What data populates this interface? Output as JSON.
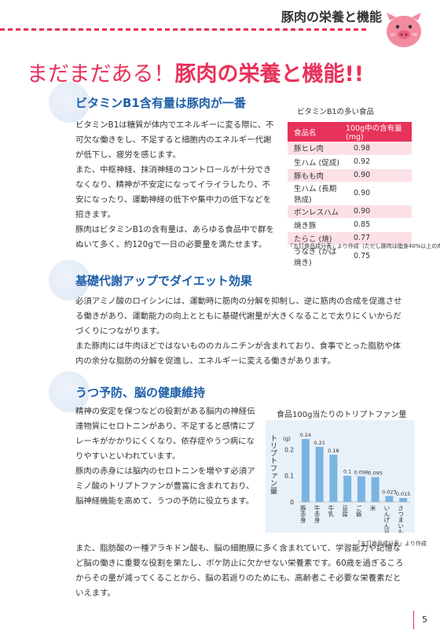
{
  "header": {
    "title": "豚肉の栄養と機能"
  },
  "main_title": {
    "lead": "まだまだある！",
    "rest": "豚肉の栄養と機能!!"
  },
  "section1": {
    "heading": "ビタミンB1含有量は豚肉が一番",
    "paragraphs": [
      "ビタミンB1は糖質が体内でエネルギーに変る際に、不可欠な働きをし、不足すると細胞内のエネルギー代謝が低下し、疲労を感じます。",
      "また、中枢神経、抹消神経のコントロールが十分できなくなり、精神が不安定になってイライラしたり、不安になったり、運動神経の低下や集中力の低下などを招きます。",
      "豚肉はビタミンB1の含有量は、あらゆる食品中で群をぬいて多く、約120gで一日の必要量を満たせます。"
    ]
  },
  "vitamin_table": {
    "caption": "ビタミンB1の多い食品",
    "headers": [
      "食品名",
      "100g中の含有量 (mg)"
    ],
    "rows": [
      [
        "豚ヒレ肉",
        "0.98"
      ],
      [
        "生ハム (促成)",
        "0.92"
      ],
      [
        "豚もも肉",
        "0.90"
      ],
      [
        "生ハム (長期熟成)",
        "0.90"
      ],
      [
        "ボンレスハム",
        "0.90"
      ],
      [
        "焼き豚",
        "0.85"
      ],
      [
        "たらこ (焼)",
        "0.77"
      ],
      [
        "うなぎ (かば焼き)",
        "0.75"
      ]
    ],
    "note": "「五訂食品成分表」より作成（ただし豚肉は脂身40%以上の肉類）"
  },
  "section2": {
    "heading": "基礎代謝アップでダイエット効果",
    "paragraphs": [
      "必須アミノ酸のロイシンには、運動時に筋肉の分解を抑制し、逆に筋肉の合成を促進させる働きがあり、運動能力の向上とともに基礎代謝量が大きくなることで太りにくいからだづくりにつながります。",
      "また豚肉には牛肉ほどではないもののカルニチンが含まれており、食事でとった脂肪や体内の余分な脂肪の分解を促進し、エネルギーに変える働きがあります。"
    ]
  },
  "section3": {
    "heading": "うつ予防、脳の健康維持",
    "paragraphs": [
      "精神の安定を保つなどの役割がある脳内の神経伝達物質にセロトニンがあり、不足すると感情にブレーキがかかりにくくなり、依存症やうつ病になりやすいといわれています。",
      "豚肉の赤身には脳内のセロトニンを増やす必須アミノ酸のトリプトファンが豊富に含まれており、脳神経機能を高めて、うつの予防に役立ちます。",
      "また、脂肪酸の一種アラキドン酸も、脳の細胞膜に多く含まれていて、学習能力や記憶など脳の働きに重要な役割を果たし、ボケ防止に欠かせない栄養素です。60歳を過ぎるころからその量が減ってくることから、脳の若返りのためにも、高齢者こそ必要な栄養素だといえます。"
    ]
  },
  "chart_data": {
    "type": "bar",
    "title": "食品100g当たりのトリプトファン量",
    "ylabel": "トリプトファン量",
    "yunit": "(g)",
    "ylim": [
      0,
      0.27
    ],
    "yticks": [
      "0",
      "0.1",
      "0.2"
    ],
    "categories": [
      "豚赤身",
      "牛赤身",
      "牛乳",
      "豆腐",
      "ご飯",
      "米",
      "いんげん豆",
      "さつまいも"
    ],
    "values": [
      0.24,
      0.21,
      0.18,
      0.1,
      0.098,
      0.095,
      0.023,
      0.015
    ],
    "value_labels": [
      "0.24",
      "0.21",
      "0.18",
      "0.1",
      "0.098",
      "0.095",
      "0.023",
      "0.015"
    ],
    "bar_color": "#7ab4e0",
    "note": "「五訂食品成分表」より作成"
  },
  "page_number": "5",
  "colors": {
    "accent": "#e8325a",
    "heading_blue": "#1e5fa8"
  }
}
